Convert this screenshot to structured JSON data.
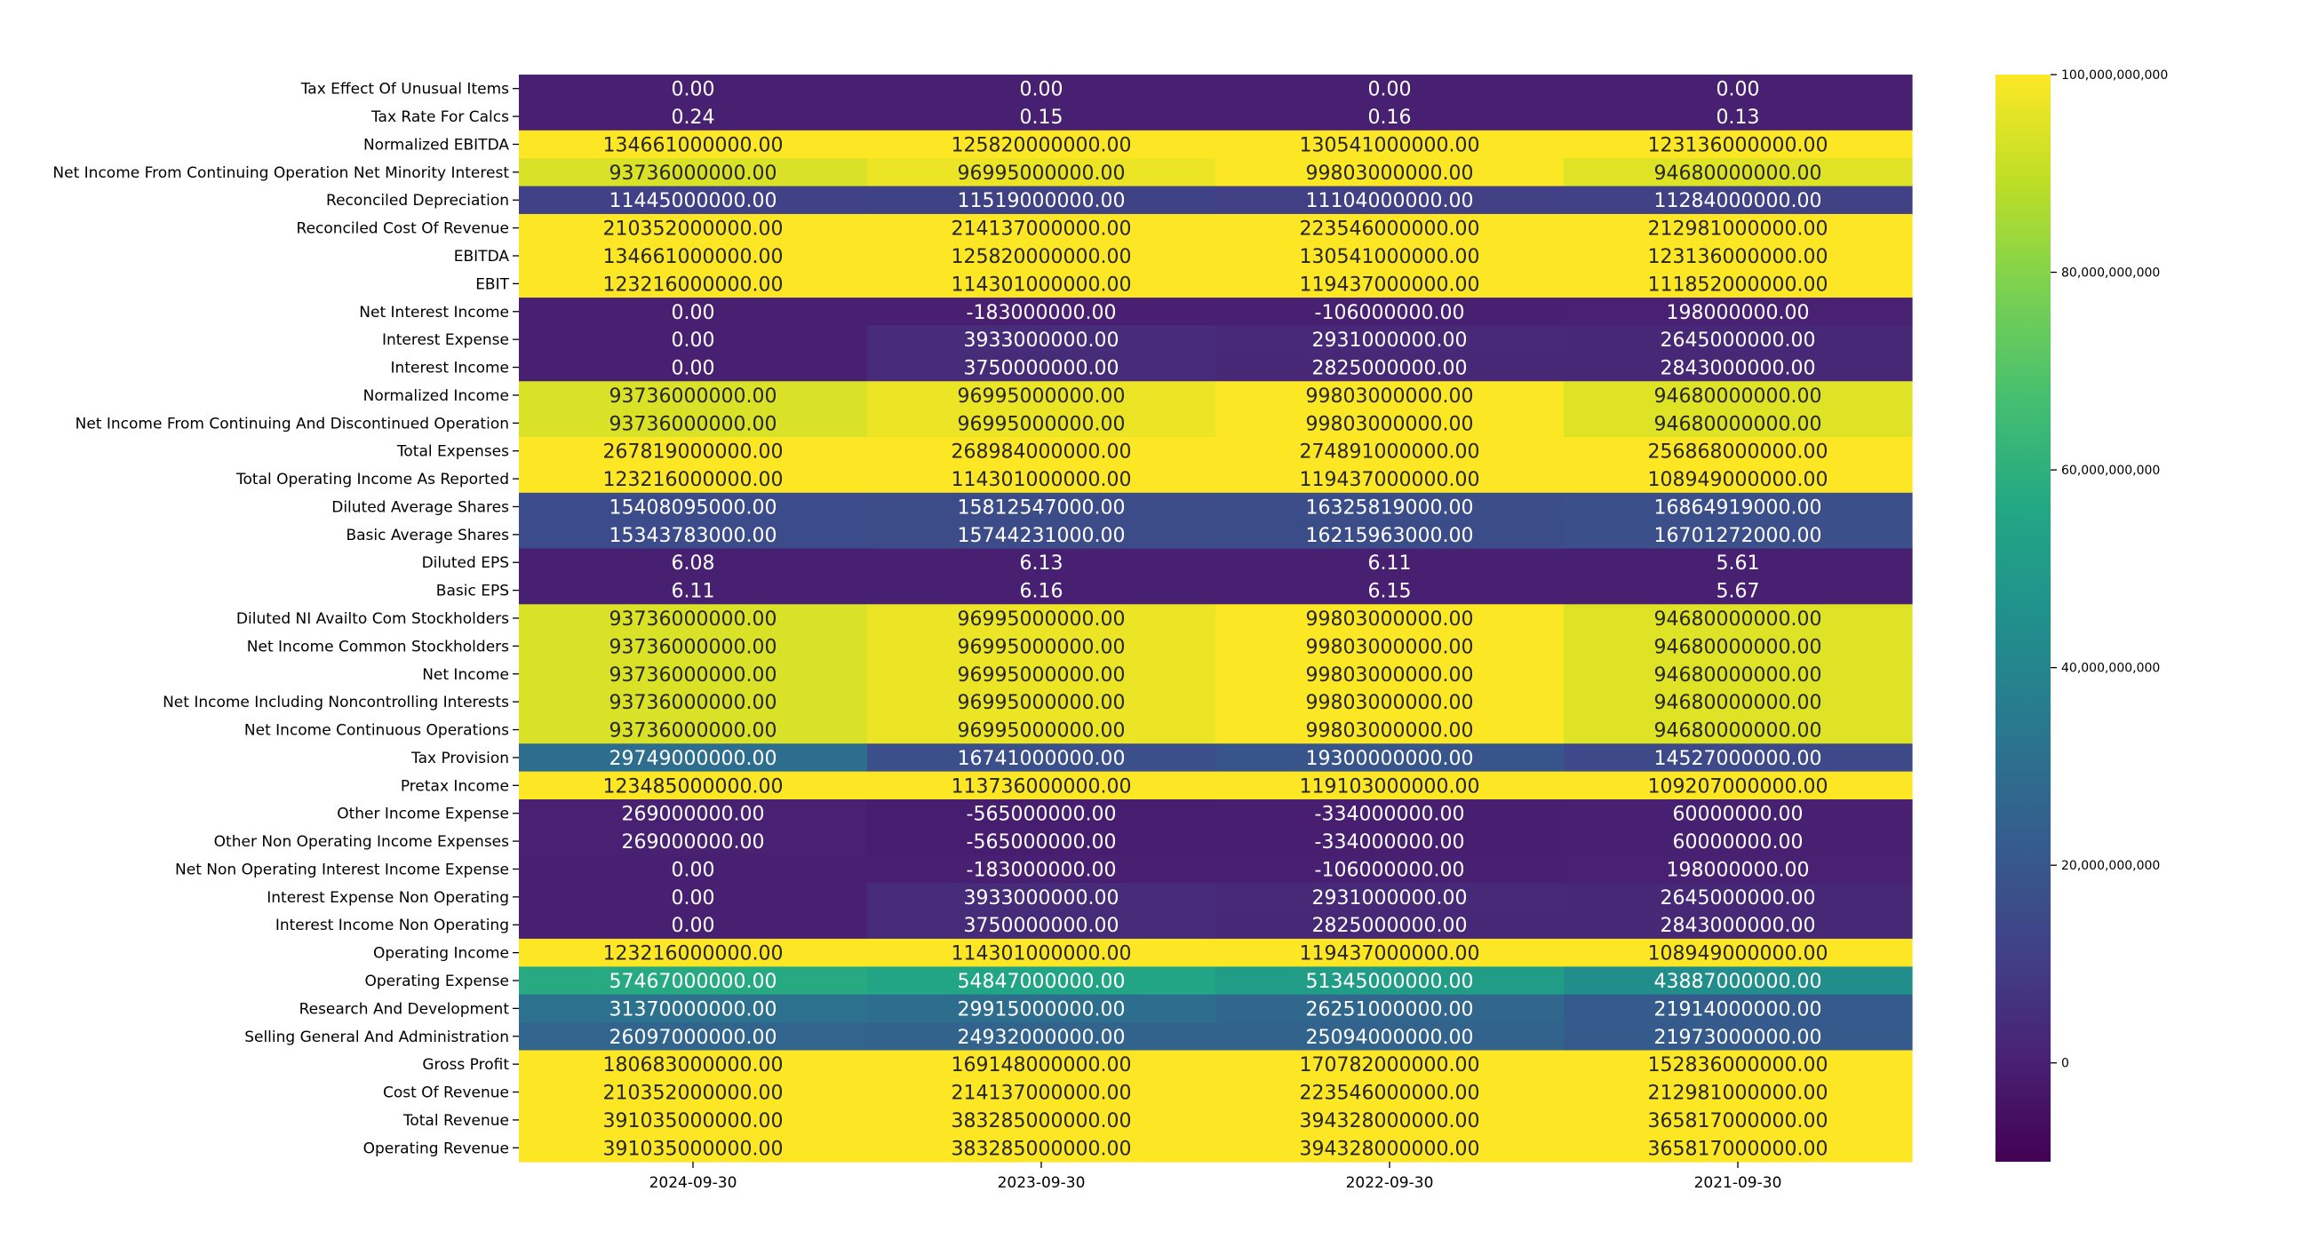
{
  "chart_data": {
    "type": "heatmap",
    "title": "",
    "xlabel": "",
    "ylabel": "",
    "columns": [
      "2024-09-30",
      "2023-09-30",
      "2022-09-30",
      "2021-09-30"
    ],
    "rows": [
      {
        "label": "Tax Effect Of Unusual Items",
        "values": [
          0,
          0,
          0,
          0
        ],
        "display": [
          "0.00",
          "0.00",
          "0.00",
          "0.00"
        ]
      },
      {
        "label": "Tax Rate For Calcs",
        "values": [
          0.24,
          0.15,
          0.16,
          0.13
        ],
        "display": [
          "0.24",
          "0.15",
          "0.16",
          "0.13"
        ]
      },
      {
        "label": "Normalized EBITDA",
        "values": [
          134661000000,
          125820000000,
          130541000000,
          123136000000
        ],
        "display": [
          "134661000000.00",
          "125820000000.00",
          "130541000000.00",
          "123136000000.00"
        ]
      },
      {
        "label": "Net Income From Continuing Operation Net Minority Interest",
        "values": [
          93736000000,
          96995000000,
          99803000000,
          94680000000
        ],
        "display": [
          "93736000000.00",
          "96995000000.00",
          "99803000000.00",
          "94680000000.00"
        ]
      },
      {
        "label": "Reconciled Depreciation",
        "values": [
          11445000000,
          11519000000,
          11104000000,
          11284000000
        ],
        "display": [
          "11445000000.00",
          "11519000000.00",
          "11104000000.00",
          "11284000000.00"
        ]
      },
      {
        "label": "Reconciled Cost Of Revenue",
        "values": [
          210352000000,
          214137000000,
          223546000000,
          212981000000
        ],
        "display": [
          "210352000000.00",
          "214137000000.00",
          "223546000000.00",
          "212981000000.00"
        ]
      },
      {
        "label": "EBITDA",
        "values": [
          134661000000,
          125820000000,
          130541000000,
          123136000000
        ],
        "display": [
          "134661000000.00",
          "125820000000.00",
          "130541000000.00",
          "123136000000.00"
        ]
      },
      {
        "label": "EBIT",
        "values": [
          123216000000,
          114301000000,
          119437000000,
          111852000000
        ],
        "display": [
          "123216000000.00",
          "114301000000.00",
          "119437000000.00",
          "111852000000.00"
        ]
      },
      {
        "label": "Net Interest Income",
        "values": [
          0,
          -183000000,
          -106000000,
          198000000
        ],
        "display": [
          "0.00",
          "-183000000.00",
          "-106000000.00",
          "198000000.00"
        ]
      },
      {
        "label": "Interest Expense",
        "values": [
          0,
          3933000000,
          2931000000,
          2645000000
        ],
        "display": [
          "0.00",
          "3933000000.00",
          "2931000000.00",
          "2645000000.00"
        ]
      },
      {
        "label": "Interest Income",
        "values": [
          0,
          3750000000,
          2825000000,
          2843000000
        ],
        "display": [
          "0.00",
          "3750000000.00",
          "2825000000.00",
          "2843000000.00"
        ]
      },
      {
        "label": "Normalized Income",
        "values": [
          93736000000,
          96995000000,
          99803000000,
          94680000000
        ],
        "display": [
          "93736000000.00",
          "96995000000.00",
          "99803000000.00",
          "94680000000.00"
        ]
      },
      {
        "label": "Net Income From Continuing And Discontinued Operation",
        "values": [
          93736000000,
          96995000000,
          99803000000,
          94680000000
        ],
        "display": [
          "93736000000.00",
          "96995000000.00",
          "99803000000.00",
          "94680000000.00"
        ]
      },
      {
        "label": "Total Expenses",
        "values": [
          267819000000,
          268984000000,
          274891000000,
          256868000000
        ],
        "display": [
          "267819000000.00",
          "268984000000.00",
          "274891000000.00",
          "256868000000.00"
        ]
      },
      {
        "label": "Total Operating Income As Reported",
        "values": [
          123216000000,
          114301000000,
          119437000000,
          108949000000
        ],
        "display": [
          "123216000000.00",
          "114301000000.00",
          "119437000000.00",
          "108949000000.00"
        ]
      },
      {
        "label": "Diluted Average Shares",
        "values": [
          15408095000,
          15812547000,
          16325819000,
          16864919000
        ],
        "display": [
          "15408095000.00",
          "15812547000.00",
          "16325819000.00",
          "16864919000.00"
        ]
      },
      {
        "label": "Basic Average Shares",
        "values": [
          15343783000,
          15744231000,
          16215963000,
          16701272000
        ],
        "display": [
          "15343783000.00",
          "15744231000.00",
          "16215963000.00",
          "16701272000.00"
        ]
      },
      {
        "label": "Diluted EPS",
        "values": [
          6.08,
          6.13,
          6.11,
          5.61
        ],
        "display": [
          "6.08",
          "6.13",
          "6.11",
          "5.61"
        ]
      },
      {
        "label": "Basic EPS",
        "values": [
          6.11,
          6.16,
          6.15,
          5.67
        ],
        "display": [
          "6.11",
          "6.16",
          "6.15",
          "5.67"
        ]
      },
      {
        "label": "Diluted NI Availto Com Stockholders",
        "values": [
          93736000000,
          96995000000,
          99803000000,
          94680000000
        ],
        "display": [
          "93736000000.00",
          "96995000000.00",
          "99803000000.00",
          "94680000000.00"
        ]
      },
      {
        "label": "Net Income Common Stockholders",
        "values": [
          93736000000,
          96995000000,
          99803000000,
          94680000000
        ],
        "display": [
          "93736000000.00",
          "96995000000.00",
          "99803000000.00",
          "94680000000.00"
        ]
      },
      {
        "label": "Net Income",
        "values": [
          93736000000,
          96995000000,
          99803000000,
          94680000000
        ],
        "display": [
          "93736000000.00",
          "96995000000.00",
          "99803000000.00",
          "94680000000.00"
        ]
      },
      {
        "label": "Net Income Including Noncontrolling Interests",
        "values": [
          93736000000,
          96995000000,
          99803000000,
          94680000000
        ],
        "display": [
          "93736000000.00",
          "96995000000.00",
          "99803000000.00",
          "94680000000.00"
        ]
      },
      {
        "label": "Net Income Continuous Operations",
        "values": [
          93736000000,
          96995000000,
          99803000000,
          94680000000
        ],
        "display": [
          "93736000000.00",
          "96995000000.00",
          "99803000000.00",
          "94680000000.00"
        ]
      },
      {
        "label": "Tax Provision",
        "values": [
          29749000000,
          16741000000,
          19300000000,
          14527000000
        ],
        "display": [
          "29749000000.00",
          "16741000000.00",
          "19300000000.00",
          "14527000000.00"
        ]
      },
      {
        "label": "Pretax Income",
        "values": [
          123485000000,
          113736000000,
          119103000000,
          109207000000
        ],
        "display": [
          "123485000000.00",
          "113736000000.00",
          "119103000000.00",
          "109207000000.00"
        ]
      },
      {
        "label": "Other Income Expense",
        "values": [
          269000000,
          -565000000,
          -334000000,
          60000000
        ],
        "display": [
          "269000000.00",
          "-565000000.00",
          "-334000000.00",
          "60000000.00"
        ]
      },
      {
        "label": "Other Non Operating Income Expenses",
        "values": [
          269000000,
          -565000000,
          -334000000,
          60000000
        ],
        "display": [
          "269000000.00",
          "-565000000.00",
          "-334000000.00",
          "60000000.00"
        ]
      },
      {
        "label": "Net Non Operating Interest Income Expense",
        "values": [
          0,
          -183000000,
          -106000000,
          198000000
        ],
        "display": [
          "0.00",
          "-183000000.00",
          "-106000000.00",
          "198000000.00"
        ]
      },
      {
        "label": "Interest Expense Non Operating",
        "values": [
          0,
          3933000000,
          2931000000,
          2645000000
        ],
        "display": [
          "0.00",
          "3933000000.00",
          "2931000000.00",
          "2645000000.00"
        ]
      },
      {
        "label": "Interest Income Non Operating",
        "values": [
          0,
          3750000000,
          2825000000,
          2843000000
        ],
        "display": [
          "0.00",
          "3750000000.00",
          "2825000000.00",
          "2843000000.00"
        ]
      },
      {
        "label": "Operating Income",
        "values": [
          123216000000,
          114301000000,
          119437000000,
          108949000000
        ],
        "display": [
          "123216000000.00",
          "114301000000.00",
          "119437000000.00",
          "108949000000.00"
        ]
      },
      {
        "label": "Operating Expense",
        "values": [
          57467000000,
          54847000000,
          51345000000,
          43887000000
        ],
        "display": [
          "57467000000.00",
          "54847000000.00",
          "51345000000.00",
          "43887000000.00"
        ]
      },
      {
        "label": "Research And Development",
        "values": [
          31370000000,
          29915000000,
          26251000000,
          21914000000
        ],
        "display": [
          "31370000000.00",
          "29915000000.00",
          "26251000000.00",
          "21914000000.00"
        ]
      },
      {
        "label": "Selling General And Administration",
        "values": [
          26097000000,
          24932000000,
          25094000000,
          21973000000
        ],
        "display": [
          "26097000000.00",
          "24932000000.00",
          "25094000000.00",
          "21973000000.00"
        ]
      },
      {
        "label": "Gross Profit",
        "values": [
          180683000000,
          169148000000,
          170782000000,
          152836000000
        ],
        "display": [
          "180683000000.00",
          "169148000000.00",
          "170782000000.00",
          "152836000000.00"
        ]
      },
      {
        "label": "Cost Of Revenue",
        "values": [
          210352000000,
          214137000000,
          223546000000,
          212981000000
        ],
        "display": [
          "210352000000.00",
          "214137000000.00",
          "223546000000.00",
          "212981000000.00"
        ]
      },
      {
        "label": "Total Revenue",
        "values": [
          391035000000,
          383285000000,
          394328000000,
          365817000000
        ],
        "display": [
          "391035000000.00",
          "383285000000.00",
          "394328000000.00",
          "365817000000.00"
        ]
      },
      {
        "label": "Operating Revenue",
        "values": [
          391035000000,
          383285000000,
          394328000000,
          365817000000
        ],
        "display": [
          "391035000000.00",
          "383285000000.00",
          "394328000000.00",
          "365817000000.00"
        ]
      }
    ],
    "colorscale": "viridis",
    "color_range": [
      -10000000000,
      100000000000
    ],
    "colorbar_ticks": [
      0,
      20000000000,
      40000000000,
      60000000000,
      80000000000,
      100000000000
    ],
    "colorbar_tick_labels": [
      "0",
      "20,000,000,000",
      "40,000,000,000",
      "60,000,000,000",
      "80,000,000,000",
      "100,000,000,000"
    ],
    "legend": "colorbar-right",
    "grid": false
  }
}
